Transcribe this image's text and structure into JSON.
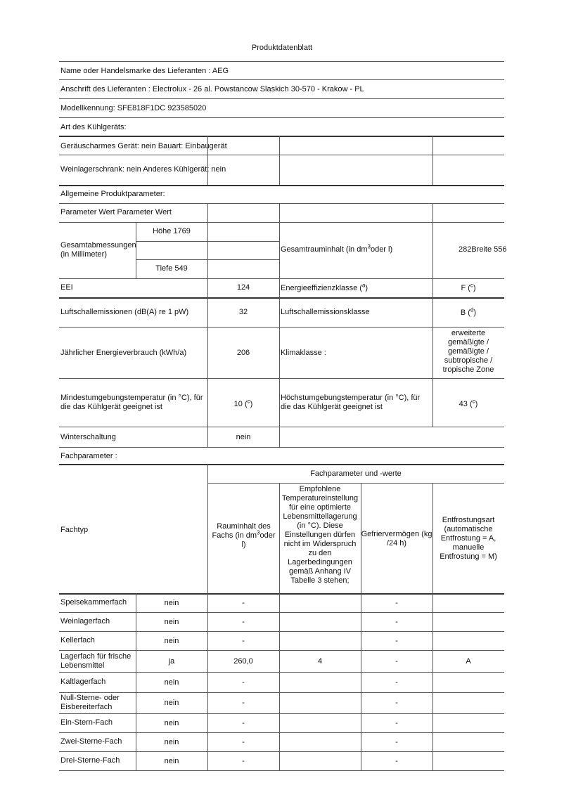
{
  "title": "Produktdatenblatt",
  "supplier": {
    "name": "Name oder Handelsmarke des Lieferanten : AEG",
    "address": "Anschrift des Lieferanten : Electrolux - 26 al. Powstancow Slaskich 30-570 - Krakow - PL",
    "model": "Modellkennung: SFE818F1DC 923585020"
  },
  "appliance_type": {
    "heading": "Art des Kühlgeräts:",
    "row1": "Geräuscharmes Gerät: nein Bauart: Einbaugerät",
    "row2": "Weinlagerschrank: nein Anderes Kühlgerät: nein"
  },
  "general": {
    "heading": "Allgemeine Produktparameter:",
    "param_header": "Parameter Wert Parameter Wert",
    "dimensions_label": "Gesamtabmessungen (in Millimeter)",
    "height": "Höhe 1769",
    "depth": "Tiefe 549",
    "volume_label_pre": "Gesamtrauminhalt (in dm",
    "volume_label_sup": "3",
    "volume_label_post": "oder l)",
    "volume_value": "282Breite 556",
    "eei_label": "EEI",
    "eei_value": "124",
    "energy_class_label": "Energieeffizienzklasse (",
    "energy_class_sup": "a",
    "energy_class_close": ")",
    "energy_class_value": "F (",
    "energy_class_value_sup": "c",
    "energy_class_value_close": ")",
    "noise_label": "Luftschallemissionen (dB(A) re 1 pW)",
    "noise_value": "32",
    "noise_class_label": "Luftschallemissionsklasse",
    "noise_class_value": "B (",
    "noise_class_value_sup": "d",
    "noise_class_value_close": ")",
    "consumption_label": "Jährlicher Energieverbrauch (kWh/a)",
    "consumption_value": "206",
    "climate_label": "Klimaklasse :",
    "climate_value": "erweiterte gemäßigte / gemäßigte / subtropische / tropische Zone",
    "min_temp_label": "Mindestumgebungstemperatur (in °C), für die das Kühlgerät geeignet ist",
    "min_temp_value": "10 (",
    "min_temp_sup": "c",
    "min_temp_close": ")",
    "max_temp_label": "Höchstumgebungstemperatur (in °C), für die das Kühlgerät geeignet ist",
    "max_temp_value": "43 (",
    "max_temp_sup": "c",
    "max_temp_close": ")",
    "winter_label": "Winterschaltung",
    "winter_value": "nein"
  },
  "compartments": {
    "heading": "Fachparameter :",
    "group_header": "Fachparameter und -werte",
    "col_type": "Fachtyp",
    "col_volume_pre": "Rauminhalt des Fachs (in dm",
    "col_volume_sup": "3",
    "col_volume_post": "oder l)",
    "col_temp": "Empfohlene Temperatureinstellung für eine optimierte Lebensmittellagerung (in °C). Diese Einstellungen dürfen nicht im Widerspruch zu den Lagerbedingungen gemäß Anhang IV Tabelle 3 stehen;",
    "col_freeze": "Gefriervermögen (kg /24 h)",
    "col_defrost": "Entfrostungsart (automatische Entfrostung = A, manuelle Entfrostung = M)",
    "rows": [
      {
        "type": "Speisekammerfach",
        "present": "nein",
        "volume": "-",
        "temp": "",
        "freeze": "-",
        "defrost": ""
      },
      {
        "type": "Weinlagerfach",
        "present": "nein",
        "volume": "-",
        "temp": "",
        "freeze": "-",
        "defrost": ""
      },
      {
        "type": "Kellerfach",
        "present": "nein",
        "volume": "-",
        "temp": "",
        "freeze": "-",
        "defrost": ""
      },
      {
        "type": "Lagerfach für frische Lebensmittel",
        "present": "ja",
        "volume": "260,0",
        "temp": "4",
        "freeze": "-",
        "defrost": "A"
      },
      {
        "type": "Kaltlagerfach",
        "present": "nein",
        "volume": "-",
        "temp": "",
        "freeze": "-",
        "defrost": ""
      },
      {
        "type": "Null-Sterne- oder Eisbereiterfach",
        "present": "nein",
        "volume": "-",
        "temp": "",
        "freeze": "-",
        "defrost": ""
      },
      {
        "type": "Ein-Stern-Fach",
        "present": "nein",
        "volume": "-",
        "temp": "",
        "freeze": "-",
        "defrost": ""
      },
      {
        "type": "Zwei-Sterne-Fach",
        "present": "nein",
        "volume": "-",
        "temp": "",
        "freeze": "-",
        "defrost": ""
      },
      {
        "type": "Drei-Sterne-Fach",
        "present": "nein",
        "volume": "-",
        "temp": "",
        "freeze": "-",
        "defrost": ""
      }
    ]
  }
}
